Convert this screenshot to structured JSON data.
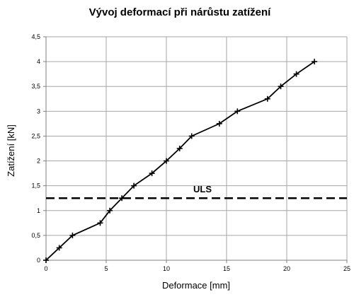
{
  "chart_data": {
    "type": "line",
    "title": "Vývoj deformací při nárůstu zatížení",
    "xlabel": "Deformace [mm]",
    "ylabel": "Zatížení [kN]",
    "xlim": [
      0,
      25
    ],
    "ylim": [
      0,
      4.5
    ],
    "xticks": [
      0,
      5,
      10,
      15,
      20,
      25
    ],
    "xtick_labels": [
      "0",
      "5",
      "10",
      "15",
      "20",
      "25"
    ],
    "yticks": [
      0,
      0.5,
      1,
      1.5,
      2,
      2.5,
      3,
      3.5,
      4,
      4.5
    ],
    "ytick_labels": [
      "0",
      "0,5",
      "1",
      "1,5",
      "2",
      "2,5",
      "3",
      "3,5",
      "4",
      "4,5"
    ],
    "grid": true,
    "series": [
      {
        "marker": "plus",
        "color": "#000000",
        "x": [
          0,
          1.1,
          2.2,
          4.5,
          5.3,
          6.3,
          7.3,
          8.8,
          10.0,
          11.1,
          12.1,
          14.4,
          15.9,
          18.4,
          19.5,
          20.8,
          22.3
        ],
        "y": [
          0,
          0.25,
          0.5,
          0.75,
          1.0,
          1.25,
          1.5,
          1.75,
          2.0,
          2.25,
          2.5,
          2.75,
          3.0,
          3.25,
          3.5,
          3.75,
          4.0
        ]
      }
    ],
    "reference_line": {
      "label": "ULS",
      "y": 1.25,
      "style": "dashed",
      "color": "#000000"
    }
  }
}
